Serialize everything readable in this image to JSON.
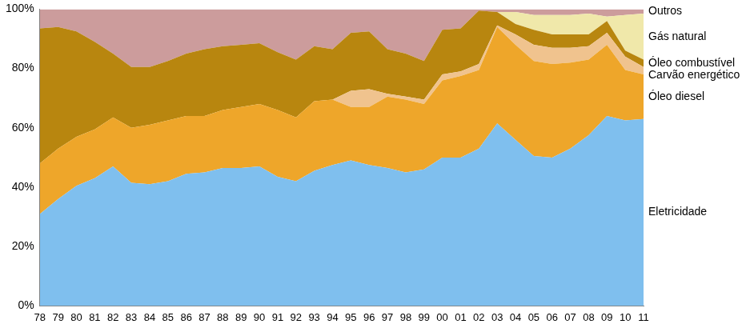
{
  "chart_data": {
    "type": "area",
    "stacked": true,
    "grid": false,
    "legend": "right",
    "categories": [
      "78",
      "79",
      "80",
      "81",
      "82",
      "83",
      "84",
      "85",
      "86",
      "87",
      "88",
      "89",
      "90",
      "91",
      "92",
      "93",
      "94",
      "95",
      "96",
      "97",
      "98",
      "99",
      "00",
      "01",
      "02",
      "03",
      "04",
      "05",
      "06",
      "07",
      "08",
      "09",
      "10",
      "11"
    ],
    "ylim": [
      0,
      100
    ],
    "yticks": [
      {
        "value": 0,
        "label": "0%"
      },
      {
        "value": 20,
        "label": "20%"
      },
      {
        "value": 40,
        "label": "40%"
      },
      {
        "value": 60,
        "label": "60%"
      },
      {
        "value": 80,
        "label": "80%"
      },
      {
        "value": 100,
        "label": "100%"
      }
    ],
    "series": [
      {
        "name": "Eletricidade",
        "color": "#7fbfee",
        "values": [
          31,
          36,
          40.5,
          43,
          47,
          41.5,
          41,
          42,
          44.5,
          45,
          46.5,
          46.5,
          47,
          43.5,
          42,
          45.5,
          47.5,
          49,
          47.5,
          46.5,
          45,
          46,
          50,
          50,
          53,
          61.5,
          56,
          50.5,
          50,
          53,
          57.5,
          64,
          62.5,
          63
        ]
      },
      {
        "name": "Óleo diesel",
        "color": "#eea62a",
        "values": [
          17,
          17,
          16.5,
          16.5,
          16.5,
          18.5,
          20,
          20.5,
          19.5,
          19,
          19.5,
          20.5,
          21,
          22.5,
          21.5,
          23.5,
          22,
          18,
          19.5,
          24,
          24.5,
          22,
          26,
          27.5,
          26.5,
          32.5,
          32,
          32,
          31.5,
          29,
          25.5,
          24,
          17,
          15
        ]
      },
      {
        "name": "Carvão energético",
        "color": "#f0c38e",
        "values": [
          0,
          0,
          0,
          0,
          0,
          0,
          0,
          0,
          0,
          0,
          0,
          0,
          0,
          0,
          0,
          0,
          0,
          5.5,
          6,
          1,
          1,
          1.5,
          2,
          1.5,
          2,
          0.5,
          3.5,
          5.5,
          5.5,
          5,
          4.5,
          4,
          4.5,
          2.5
        ]
      },
      {
        "name": "Óleo combustível",
        "color": "#b8860f",
        "values": [
          45.5,
          41,
          35.5,
          29.5,
          21.5,
          20.5,
          19.5,
          20,
          21,
          22.5,
          21.5,
          21,
          20.5,
          19.5,
          19.5,
          18.5,
          17,
          19.5,
          19.5,
          15,
          14.5,
          13,
          15,
          14.5,
          18,
          4.5,
          3.5,
          5,
          4.5,
          4.5,
          4,
          4,
          2,
          2.5
        ]
      },
      {
        "name": "Gás natural",
        "color": "#f0e8aa",
        "values": [
          0,
          0,
          0,
          0,
          0,
          0,
          0,
          0,
          0,
          0,
          0,
          0,
          0,
          0,
          0,
          0,
          0,
          0,
          0,
          0,
          0,
          0,
          0,
          0,
          0,
          0,
          4,
          5,
          6.5,
          6.5,
          7,
          1.5,
          12,
          15.5
        ]
      },
      {
        "name": "Outros",
        "color": "#cc9c9c",
        "values": [
          6.5,
          6,
          7.5,
          11,
          15,
          19.5,
          19.5,
          17.5,
          15,
          13.5,
          12.5,
          12,
          11.5,
          14.5,
          17,
          12.5,
          13.5,
          8,
          7.5,
          13.5,
          15,
          17.5,
          7,
          6.5,
          0.5,
          1,
          1,
          2,
          2,
          2,
          1.5,
          2.5,
          2,
          1.5
        ]
      }
    ]
  }
}
